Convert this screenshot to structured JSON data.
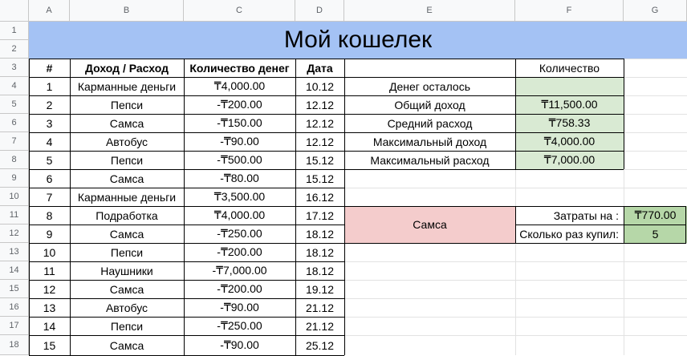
{
  "column_headers": [
    "A",
    "B",
    "C",
    "D",
    "E",
    "F",
    "G"
  ],
  "row_numbers": [
    "1",
    "2",
    "3",
    "4",
    "5",
    "6",
    "7",
    "8",
    "9",
    "10",
    "11",
    "12",
    "13",
    "14",
    "15",
    "16",
    "17",
    "18"
  ],
  "title": "Мой кошелек",
  "table_header": {
    "num": "#",
    "item": "Доход / Расход",
    "amount": "Количество денег",
    "date": "Дата"
  },
  "rows": [
    {
      "num": "1",
      "item": "Карманные деньги",
      "amount": "₸4,000.00",
      "date": "10.12"
    },
    {
      "num": "2",
      "item": "Пепси",
      "amount": "-₸200.00",
      "date": "12.12"
    },
    {
      "num": "3",
      "item": "Самса",
      "amount": "-₸150.00",
      "date": "12.12"
    },
    {
      "num": "4",
      "item": "Автобус",
      "amount": "-₸90.00",
      "date": "12.12"
    },
    {
      "num": "5",
      "item": "Пепси",
      "amount": "-₸500.00",
      "date": "15.12"
    },
    {
      "num": "6",
      "item": "Самса",
      "amount": "-₸80.00",
      "date": "15.12"
    },
    {
      "num": "7",
      "item": "Карманные деньги",
      "amount": "₸3,500.00",
      "date": "16.12"
    },
    {
      "num": "8",
      "item": "Подработка",
      "amount": "₸4,000.00",
      "date": "17.12"
    },
    {
      "num": "9",
      "item": "Самса",
      "amount": "-₸250.00",
      "date": "18.12"
    },
    {
      "num": "10",
      "item": "Пепси",
      "amount": "-₸200.00",
      "date": "18.12"
    },
    {
      "num": "11",
      "item": "Наушники",
      "amount": "-₸7,000.00",
      "date": "18.12"
    },
    {
      "num": "12",
      "item": "Самса",
      "amount": "-₸200.00",
      "date": "19.12"
    },
    {
      "num": "13",
      "item": "Автобус",
      "amount": "-₸90.00",
      "date": "21.12"
    },
    {
      "num": "14",
      "item": "Пепси",
      "amount": "-₸250.00",
      "date": "21.12"
    },
    {
      "num": "15",
      "item": "Самса",
      "amount": "-₸90.00",
      "date": "25.12"
    }
  ],
  "summary": {
    "header": "Количество",
    "items": [
      {
        "label": "Денег осталось",
        "value": ""
      },
      {
        "label": "Общий доход",
        "value": "₸11,500.00"
      },
      {
        "label": "Средний расход",
        "value": "₸758.33"
      },
      {
        "label": "Максимальный доход",
        "value": "₸4,000.00"
      },
      {
        "label": "Максимальный расход",
        "value": "₸7,000.00"
      }
    ]
  },
  "lookup": {
    "item": "Самса",
    "spent_label": "Затраты на :",
    "spent_value": "₸770.00",
    "count_label": "Сколько раз купил:",
    "count_value": "5"
  },
  "colors": {
    "title_bg": "#a4c2f4",
    "summary_bg": "#d9ead3",
    "lookup_item_bg": "#f4cccc",
    "lookup_value_bg": "#b6d7a8"
  }
}
